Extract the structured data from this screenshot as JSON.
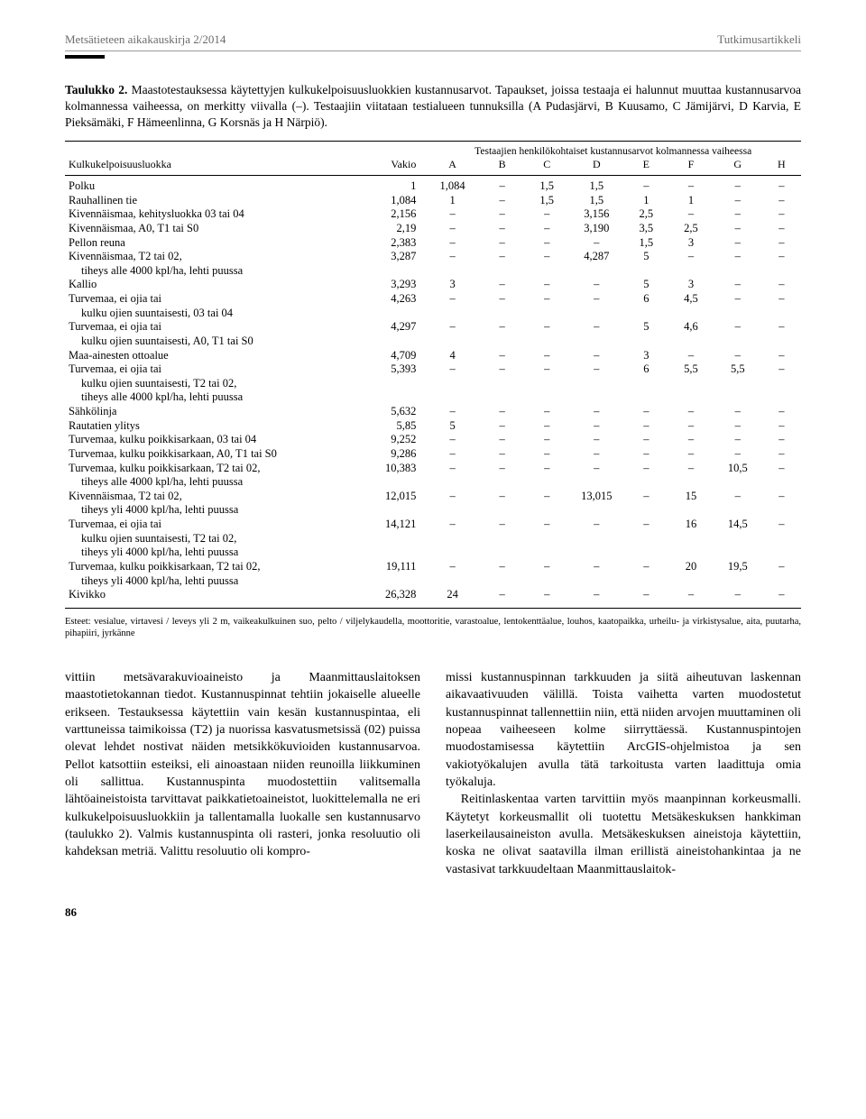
{
  "running_head": {
    "left": "Metsätieteen aikakauskirja 2/2014",
    "right": "Tutkimusartikkeli"
  },
  "caption": {
    "label": "Taulukko 2.",
    "text": " Maastotestauksessa käytettyjen kulkukelpoisuusluokkien kustannusarvot. Tapaukset, joissa testaaja ei halunnut muuttaa kustannusarvoa kolmannessa vaiheessa, on merkitty viivalla (–). Testaajiin viitataan testialueen tunnuksilla (A Pudasjärvi, B Kuusamo, C Jämijärvi, D Karvia, E Pieksämäki, F Hämeenlinna, G Korsnäs ja H Närpiö)."
  },
  "table": {
    "superheader": "Testaajien henkilökohtaiset kustannusarvot kolmannessa vaiheessa",
    "columns": [
      "Kulkukelpoisuusluokka",
      "Vakio",
      "A",
      "B",
      "C",
      "D",
      "E",
      "F",
      "G",
      "H"
    ],
    "rows": [
      {
        "label": "Polku",
        "vakio": "1",
        "v": [
          "1,084",
          "–",
          "1,5",
          "1,5",
          "–",
          "–",
          "–",
          "–"
        ]
      },
      {
        "label": "Rauhallinen tie",
        "vakio": "1,084",
        "v": [
          "1",
          "–",
          "1,5",
          "1,5",
          "1",
          "1",
          "–",
          "–"
        ]
      },
      {
        "label": "Kivennäismaa, kehitysluokka 03 tai 04",
        "vakio": "2,156",
        "v": [
          "–",
          "–",
          "–",
          "3,156",
          "2,5",
          "–",
          "–",
          "–"
        ]
      },
      {
        "label": "Kivennäismaa, A0, T1 tai S0",
        "vakio": "2,19",
        "v": [
          "–",
          "–",
          "–",
          "3,190",
          "3,5",
          "2,5",
          "–",
          "–"
        ]
      },
      {
        "label": "Pellon reuna",
        "vakio": "2,383",
        "v": [
          "–",
          "–",
          "–",
          "–",
          "1,5",
          "3",
          "–",
          "–"
        ]
      },
      {
        "label": "Kivennäismaa, T2 tai 02,",
        "vakio": "3,287",
        "v": [
          "–",
          "–",
          "–",
          "4,287",
          "5",
          "–",
          "–",
          "–"
        ],
        "cont": "tiheys alle 4000 kpl/ha, lehti puussa"
      },
      {
        "label": "Kallio",
        "vakio": "3,293",
        "v": [
          "3",
          "–",
          "–",
          "–",
          "5",
          "3",
          "–",
          "–"
        ]
      },
      {
        "label": "Turvemaa, ei ojia tai",
        "vakio": "4,263",
        "v": [
          "–",
          "–",
          "–",
          "–",
          "6",
          "4,5",
          "–",
          "–"
        ],
        "cont": "kulku ojien suuntaisesti, 03 tai 04"
      },
      {
        "label": "Turvemaa, ei ojia tai",
        "vakio": "4,297",
        "v": [
          "–",
          "–",
          "–",
          "–",
          "5",
          "4,6",
          "–",
          "–"
        ],
        "cont": "kulku ojien suuntaisesti, A0, T1 tai S0"
      },
      {
        "label": "Maa-ainesten ottoalue",
        "vakio": "4,709",
        "v": [
          "4",
          "–",
          "–",
          "–",
          "3",
          "–",
          "–",
          "–"
        ]
      },
      {
        "label": "Turvemaa, ei ojia tai",
        "vakio": "5,393",
        "v": [
          "–",
          "–",
          "–",
          "–",
          "6",
          "5,5",
          "5,5",
          "–"
        ],
        "cont": "kulku ojien suuntaisesti, T2 tai 02,",
        "cont2": "tiheys alle 4000 kpl/ha, lehti puussa"
      },
      {
        "label": "Sähkölinja",
        "vakio": "5,632",
        "v": [
          "–",
          "–",
          "–",
          "–",
          "–",
          "–",
          "–",
          "–"
        ]
      },
      {
        "label": "Rautatien ylitys",
        "vakio": "5,85",
        "v": [
          "5",
          "–",
          "–",
          "–",
          "–",
          "–",
          "–",
          "–"
        ]
      },
      {
        "label": "Turvemaa, kulku poikkisarkaan, 03 tai 04",
        "vakio": "9,252",
        "v": [
          "–",
          "–",
          "–",
          "–",
          "–",
          "–",
          "–",
          "–"
        ]
      },
      {
        "label": "Turvemaa, kulku poikkisarkaan, A0, T1 tai S0",
        "vakio": "9,286",
        "v": [
          "–",
          "–",
          "–",
          "–",
          "–",
          "–",
          "–",
          "–"
        ]
      },
      {
        "label": "Turvemaa, kulku poikkisarkaan, T2 tai 02,",
        "vakio": "10,383",
        "v": [
          "–",
          "–",
          "–",
          "–",
          "–",
          "–",
          "10,5",
          "–"
        ],
        "cont": "tiheys alle 4000 kpl/ha, lehti puussa"
      },
      {
        "label": "Kivennäismaa, T2 tai 02,",
        "vakio": "12,015",
        "v": [
          "–",
          "–",
          "–",
          "13,015",
          "–",
          "15",
          "–",
          "–"
        ],
        "cont": "tiheys yli 4000 kpl/ha, lehti puussa"
      },
      {
        "label": "Turvemaa, ei ojia tai",
        "vakio": "14,121",
        "v": [
          "–",
          "–",
          "–",
          "–",
          "–",
          "16",
          "14,5",
          "–"
        ],
        "cont": "kulku ojien suuntaisesti, T2 tai 02,",
        "cont2": "tiheys yli 4000 kpl/ha, lehti puussa"
      },
      {
        "label": "Turvemaa, kulku poikkisarkaan, T2 tai 02,",
        "vakio": "19,111",
        "v": [
          "–",
          "–",
          "–",
          "–",
          "–",
          "20",
          "19,5",
          "–"
        ],
        "cont": "tiheys yli 4000 kpl/ha, lehti puussa"
      },
      {
        "label": "Kivikko",
        "vakio": "26,328",
        "v": [
          "24",
          "–",
          "–",
          "–",
          "–",
          "–",
          "–",
          "–"
        ]
      }
    ]
  },
  "footnote": "Esteet: vesialue, virtavesi / leveys yli 2 m, vaikeakulkuinen suo, pelto / viljelykaudella, moottoritie, varastoalue, lentokenttäalue, louhos, kaatopaikka, urheilu- ja virkistysalue, aita, puutarha, pihapiiri, jyrkänne",
  "body": {
    "left_first": "vittiin metsävarakuvioaineisto ja Maanmittauslaitoksen maastotietokannan tiedot. Kustannuspinnat tehtiin jokaiselle alueelle erikseen. Testauksessa käytettiin vain kesän kustannuspintaa, eli varttuneissa taimikoissa (T2) ja nuorissa kasvatusmetsissä (02) puissa olevat lehdet nostivat näiden metsikkökuvioiden kustannusarvoa. Pellot katsottiin esteiksi, eli ainoastaan niiden reunoilla liikkuminen oli sallittua. Kustannuspinta muodostettiin valitsemalla lähtöaineistoista tarvittavat paikkatietoaineistot, luokittelemalla ne eri kulkukelpoisuusluokkiin ja tallentamalla luokalle sen kustannusarvo (taulukko 2). Valmis kustannuspinta oli rasteri, jonka resoluutio oli kahdeksan metriä. Valittu resoluutio oli kompro-",
    "right_first": "missi kustannuspinnan tarkkuuden ja siitä aiheutuvan laskennan aikavaativuuden välillä. Toista vaihetta varten muodostetut kustannuspinnat tallennettiin niin, että niiden arvojen muuttaminen oli nopeaa vaiheeseen kolme siirryttäessä. Kustannuspintojen muodostamisessa käytettiin ArcGIS-ohjelmistoa ja sen vakiotyökalujen avulla tätä tarkoitusta varten laadittuja omia työkaluja.",
    "right_second": "Reitinlaskentaa varten tarvittiin myös maanpinnan korkeusmalli. Käytetyt korkeusmallit oli tuotettu Metsäkeskuksen hankkiman laserkeilausaineiston avulla. Metsäkeskuksen aineistoja käytettiin, koska ne olivat saatavilla ilman erillistä aineistohankintaa ja ne vastasivat tarkkuudeltaan Maanmittauslaitok-"
  },
  "page_number": "86"
}
